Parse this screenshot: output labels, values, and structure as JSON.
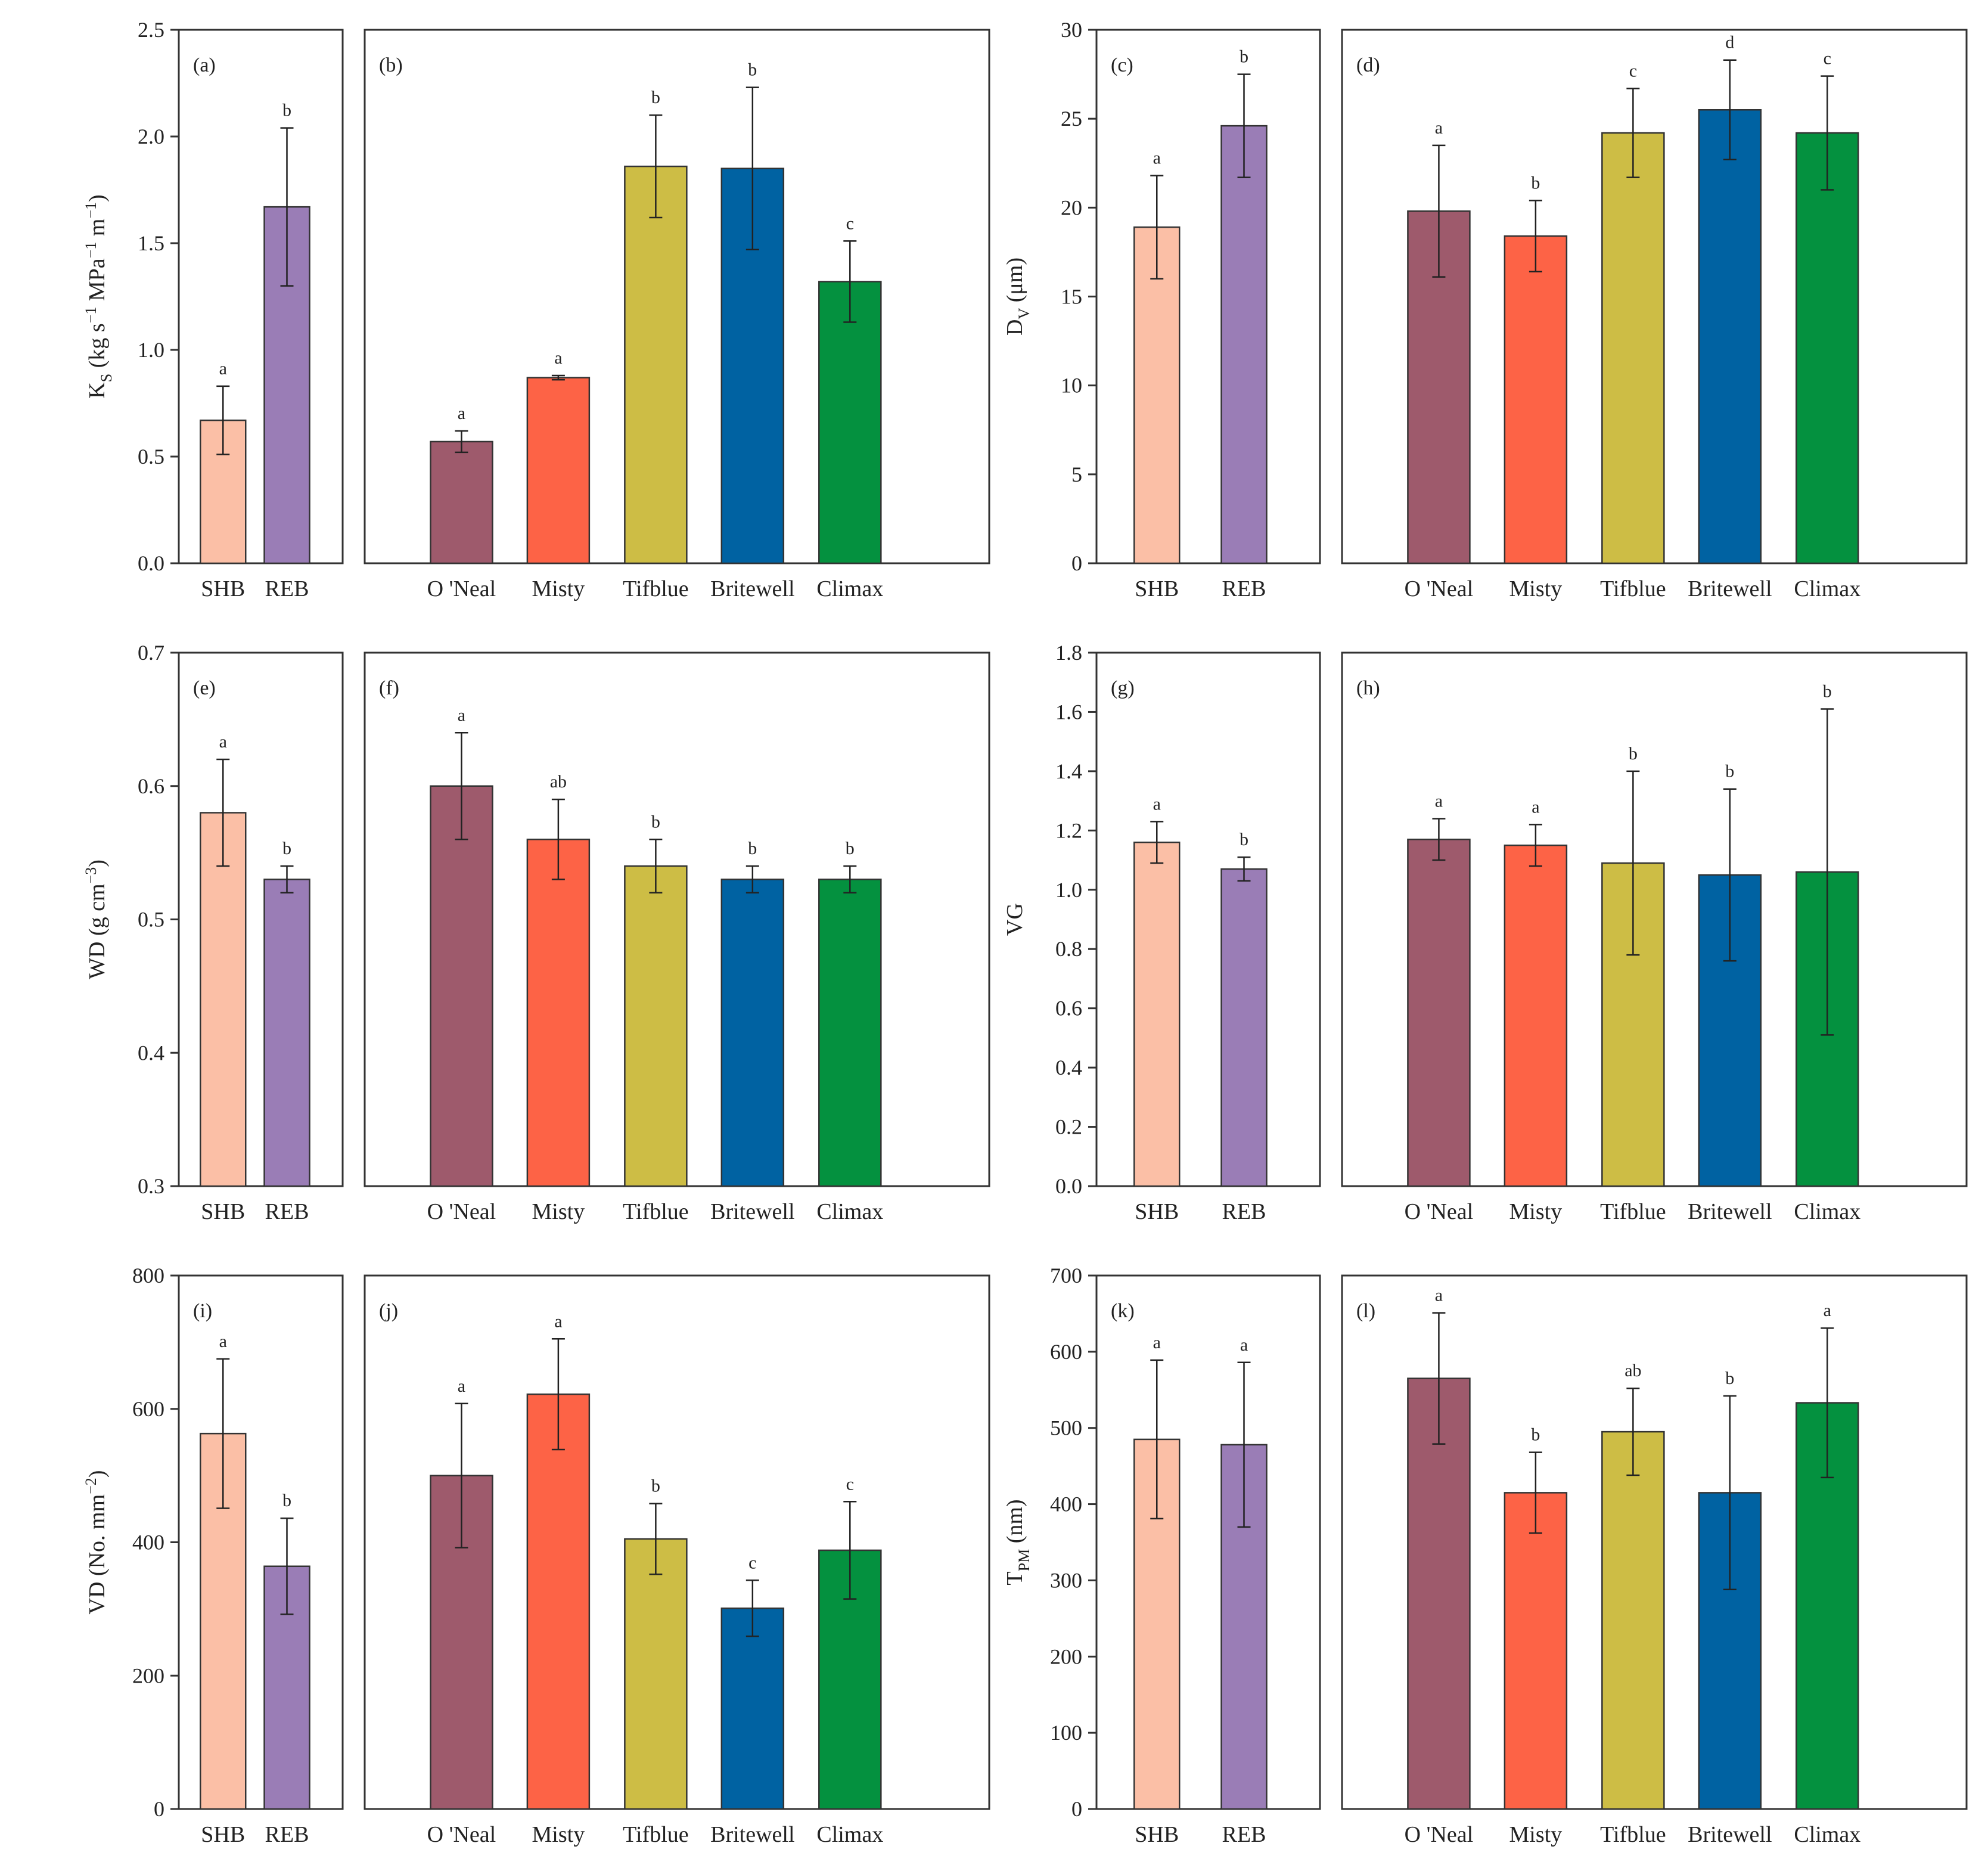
{
  "colors": {
    "SHB": "#fbbfa6",
    "REB": "#9a7db6",
    "O 'Neal": "#9e5a6c",
    "Misty": "#fd6346",
    "Tifblue": "#cdbd45",
    "Britewell": "#0062a2",
    "Climax": "#04913f"
  },
  "chart_data": [
    {
      "panel": "(a)",
      "type": "bar",
      "ylabel": "KS (kg s−1 MPa−1 m−1)",
      "ylim": [
        0,
        2.5
      ],
      "yticks": [
        "0.0",
        "0.5",
        "1.0",
        "1.5",
        "2.0",
        "2.5"
      ],
      "categories": [
        "SHB",
        "REB"
      ],
      "values": [
        0.67,
        1.67
      ],
      "errors": [
        0.16,
        0.37
      ],
      "letters": [
        "a",
        "b"
      ]
    },
    {
      "panel": "(b)",
      "type": "bar",
      "ylim": [
        0,
        2.5
      ],
      "categories": [
        "O 'Neal",
        "Misty",
        "Tifblue",
        "Britewell",
        "Climax"
      ],
      "values": [
        0.57,
        0.87,
        1.86,
        1.85,
        1.32
      ],
      "errors": [
        0.05,
        0.01,
        0.24,
        0.38,
        0.19
      ],
      "letters": [
        "a",
        "a",
        "b",
        "b",
        "c"
      ]
    },
    {
      "panel": "(c)",
      "type": "bar",
      "ylabel": "DV (μm)",
      "ylim": [
        0,
        30
      ],
      "yticks": [
        "0",
        "5",
        "10",
        "15",
        "20",
        "25",
        "30"
      ],
      "categories": [
        "SHB",
        "REB"
      ],
      "values": [
        18.9,
        24.6
      ],
      "errors": [
        2.9,
        2.9
      ],
      "letters": [
        "a",
        "b"
      ]
    },
    {
      "panel": "(d)",
      "type": "bar",
      "ylim": [
        0,
        30
      ],
      "categories": [
        "O 'Neal",
        "Misty",
        "Tifblue",
        "Britewell",
        "Climax"
      ],
      "values": [
        19.8,
        18.4,
        24.2,
        25.5,
        24.2
      ],
      "errors": [
        3.7,
        2.0,
        2.5,
        2.8,
        3.2
      ],
      "letters": [
        "a",
        "b",
        "c",
        "d",
        "c"
      ]
    },
    {
      "panel": "(e)",
      "type": "bar",
      "ylabel": "WD (g cm−3)",
      "ylim": [
        0.3,
        0.7
      ],
      "yticks": [
        "0.3",
        "0.4",
        "0.5",
        "0.6",
        "0.7"
      ],
      "categories": [
        "SHB",
        "REB"
      ],
      "values": [
        0.58,
        0.53
      ],
      "errors": [
        0.04,
        0.01
      ],
      "letters": [
        "a",
        "b"
      ]
    },
    {
      "panel": "(f)",
      "type": "bar",
      "ylim": [
        0.3,
        0.7
      ],
      "categories": [
        "O 'Neal",
        "Misty",
        "Tifblue",
        "Britewell",
        "Climax"
      ],
      "values": [
        0.6,
        0.56,
        0.54,
        0.53,
        0.53
      ],
      "errors": [
        0.04,
        0.03,
        0.02,
        0.01,
        0.01
      ],
      "letters": [
        "a",
        "ab",
        "b",
        "b",
        "b"
      ]
    },
    {
      "panel": "(g)",
      "type": "bar",
      "ylabel": "VG",
      "ylim": [
        0,
        1.8
      ],
      "yticks": [
        "0.0",
        "0.2",
        "0.4",
        "0.6",
        "0.8",
        "1.0",
        "1.2",
        "1.4",
        "1.6",
        "1.8"
      ],
      "categories": [
        "SHB",
        "REB"
      ],
      "values": [
        1.16,
        1.07
      ],
      "errors": [
        0.07,
        0.04
      ],
      "letters": [
        "a",
        "b"
      ]
    },
    {
      "panel": "(h)",
      "type": "bar",
      "ylim": [
        0,
        1.8
      ],
      "categories": [
        "O 'Neal",
        "Misty",
        "Tifblue",
        "Britewell",
        "Climax"
      ],
      "values": [
        1.17,
        1.15,
        1.09,
        1.05,
        1.06
      ],
      "errors": [
        0.07,
        0.07,
        0.31,
        0.29,
        0.55
      ],
      "letters": [
        "a",
        "a",
        "b",
        "b",
        "b"
      ]
    },
    {
      "panel": "(i)",
      "type": "bar",
      "ylabel": "VD (No. mm−2)",
      "ylim": [
        0,
        800
      ],
      "yticks": [
        "0",
        "200",
        "400",
        "600",
        "800"
      ],
      "categories": [
        "SHB",
        "REB"
      ],
      "values": [
        563,
        364
      ],
      "errors": [
        112,
        72
      ],
      "letters": [
        "a",
        "b"
      ]
    },
    {
      "panel": "(j)",
      "type": "bar",
      "ylim": [
        0,
        800
      ],
      "categories": [
        "O 'Neal",
        "Misty",
        "Tifblue",
        "Britewell",
        "Climax"
      ],
      "values": [
        500,
        622,
        405,
        301,
        388
      ],
      "errors": [
        108,
        83,
        53,
        42,
        73
      ],
      "letters": [
        "a",
        "a",
        "b",
        "c",
        "c"
      ]
    },
    {
      "panel": "(k)",
      "type": "bar",
      "ylabel": "TPM (nm)",
      "ylim": [
        0,
        700
      ],
      "yticks": [
        "0",
        "100",
        "200",
        "300",
        "400",
        "500",
        "600",
        "700"
      ],
      "categories": [
        "SHB",
        "REB"
      ],
      "values": [
        485,
        478
      ],
      "errors": [
        104,
        108
      ],
      "letters": [
        "a",
        "a"
      ]
    },
    {
      "panel": "(l)",
      "type": "bar",
      "ylim": [
        0,
        700
      ],
      "categories": [
        "O 'Neal",
        "Misty",
        "Tifblue",
        "Britewell",
        "Climax"
      ],
      "values": [
        565,
        415,
        495,
        415,
        533
      ],
      "errors": [
        86,
        53,
        57,
        127,
        98
      ],
      "letters": [
        "a",
        "b",
        "ab",
        "b",
        "a"
      ]
    }
  ]
}
